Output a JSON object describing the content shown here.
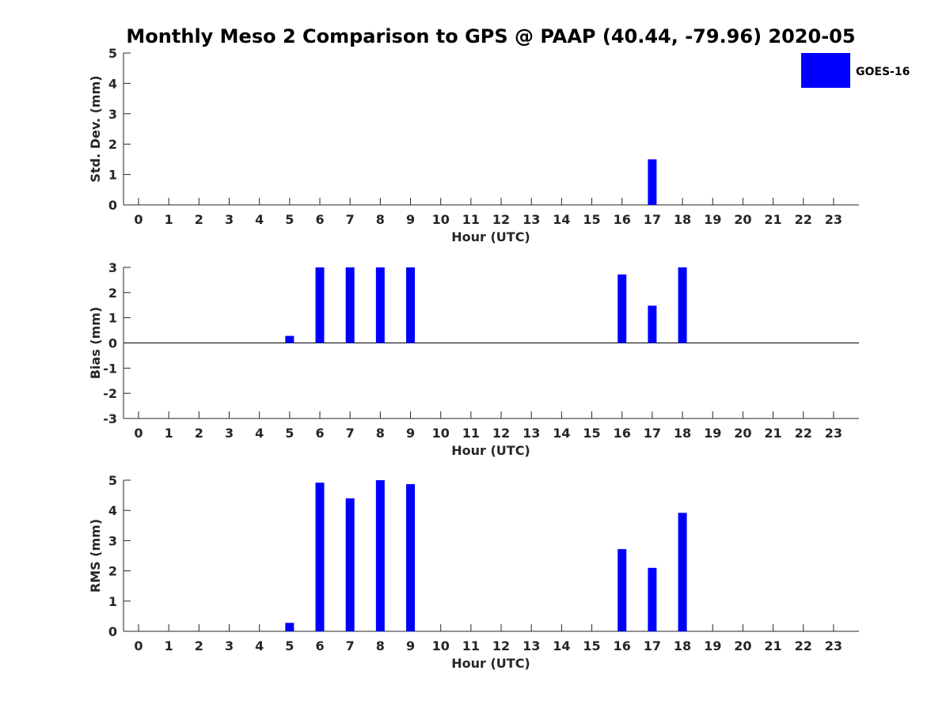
{
  "title": "Monthly Meso 2 Comparison to GPS @ PAAP (40.44, -79.96) 2020-05",
  "colors": {
    "bar": "#0000ff",
    "axis": "#262626",
    "zero_line": "#000000"
  },
  "chart_data": [
    {
      "type": "bar",
      "xlabel": "Hour (UTC)",
      "ylabel": "Std. Dev. (mm)",
      "ylim": [
        0,
        5
      ],
      "yticks": [
        0,
        1,
        2,
        3,
        4,
        5
      ],
      "categories": [
        "0",
        "1",
        "2",
        "3",
        "4",
        "5",
        "6",
        "7",
        "8",
        "9",
        "10",
        "11",
        "12",
        "13",
        "14",
        "15",
        "16",
        "17",
        "18",
        "19",
        "20",
        "21",
        "22",
        "23"
      ],
      "series": [
        {
          "name": "GOES-16",
          "values": [
            null,
            null,
            null,
            null,
            null,
            null,
            null,
            null,
            null,
            null,
            null,
            null,
            null,
            null,
            null,
            null,
            null,
            1.5,
            null,
            null,
            null,
            null,
            null,
            null
          ]
        }
      ],
      "legend": {
        "position": "top-right",
        "entries": [
          "GOES-16"
        ]
      }
    },
    {
      "type": "bar",
      "xlabel": "Hour (UTC)",
      "ylabel": "Bias (mm)",
      "ylim": [
        -3,
        3
      ],
      "yticks": [
        -3,
        -2,
        -1,
        0,
        1,
        2,
        3
      ],
      "zero_line": true,
      "categories": [
        "0",
        "1",
        "2",
        "3",
        "4",
        "5",
        "6",
        "7",
        "8",
        "9",
        "10",
        "11",
        "12",
        "13",
        "14",
        "15",
        "16",
        "17",
        "18",
        "19",
        "20",
        "21",
        "22",
        "23"
      ],
      "series": [
        {
          "name": "GOES-16",
          "values": [
            null,
            null,
            null,
            null,
            null,
            0.28,
            3.0,
            3.0,
            3.0,
            3.0,
            null,
            null,
            null,
            null,
            null,
            null,
            2.72,
            1.48,
            3.0,
            null,
            null,
            null,
            null,
            null
          ]
        }
      ]
    },
    {
      "type": "bar",
      "xlabel": "Hour (UTC)",
      "ylabel": "RMS (mm)",
      "ylim": [
        0,
        5
      ],
      "yticks": [
        0,
        1,
        2,
        3,
        4,
        5
      ],
      "categories": [
        "0",
        "1",
        "2",
        "3",
        "4",
        "5",
        "6",
        "7",
        "8",
        "9",
        "10",
        "11",
        "12",
        "13",
        "14",
        "15",
        "16",
        "17",
        "18",
        "19",
        "20",
        "21",
        "22",
        "23"
      ],
      "series": [
        {
          "name": "GOES-16",
          "values": [
            null,
            null,
            null,
            null,
            null,
            0.28,
            4.92,
            4.4,
            5.0,
            4.87,
            null,
            null,
            null,
            null,
            null,
            null,
            2.72,
            2.1,
            3.92,
            null,
            null,
            null,
            null,
            null
          ]
        }
      ]
    }
  ]
}
